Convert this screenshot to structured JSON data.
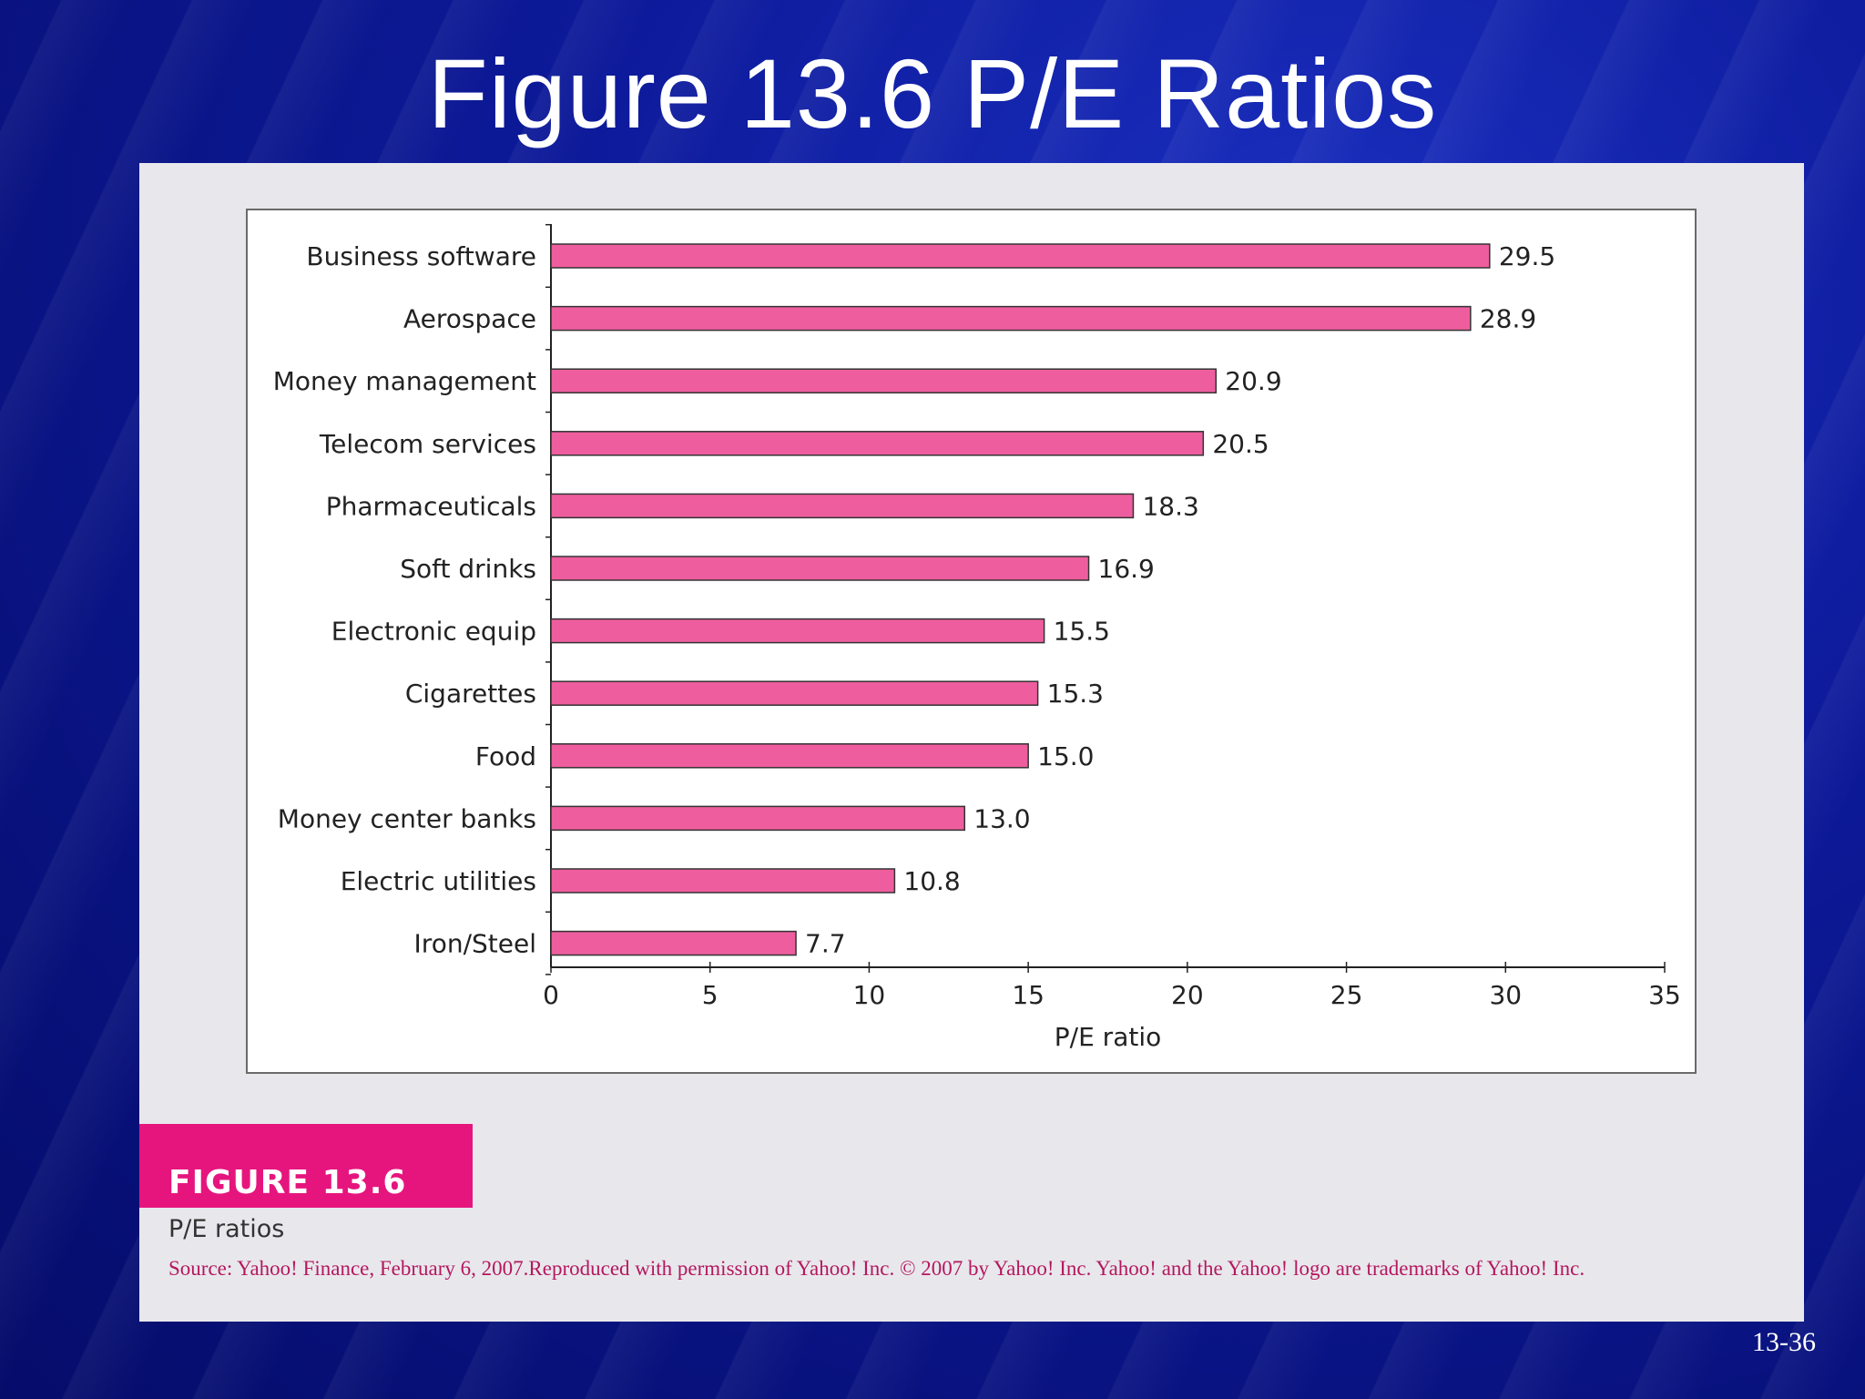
{
  "slide": {
    "title": "Figure 13.6 P/E Ratios",
    "page_number": "13-36"
  },
  "figure": {
    "tag": "FIGURE 13.6",
    "caption": "P/E ratios",
    "source": "Source: Yahoo! Finance, February 6, 2007.Reproduced with permission of Yahoo! Inc. © 2007 by Yahoo! Inc. Yahoo! and the Yahoo! logo are trademarks of Yahoo! Inc.",
    "tag_color": "#e6157e"
  },
  "chart_data": {
    "type": "bar",
    "orientation": "horizontal",
    "categories": [
      "Business software",
      "Aerospace",
      "Money management",
      "Telecom services",
      "Pharmaceuticals",
      "Soft drinks",
      "Electronic equip",
      "Cigarettes",
      "Food",
      "Money center banks",
      "Electric utilities",
      "Iron/Steel"
    ],
    "values": [
      29.5,
      28.9,
      20.9,
      20.5,
      18.3,
      16.9,
      15.5,
      15.3,
      15.0,
      13.0,
      10.8,
      7.7
    ],
    "value_labels": [
      "29.5",
      "28.9",
      "20.9",
      "20.5",
      "18.3",
      "16.9",
      "15.5",
      "15.3",
      "15.0",
      "13.0",
      "10.8",
      "7.7"
    ],
    "xlabel": "P/E ratio",
    "ylabel": "",
    "xlim": [
      0,
      35
    ],
    "xticks": [
      0,
      5,
      10,
      15,
      20,
      25,
      30,
      35
    ],
    "bar_color": "#ee5e9e",
    "grid": false
  }
}
